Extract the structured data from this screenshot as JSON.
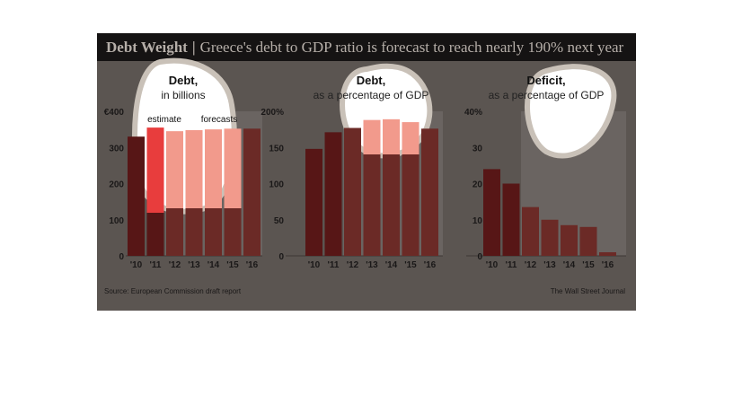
{
  "header": {
    "title": "Debt Weight",
    "separator": "|",
    "subtitle": "Greece's debt to GDP ratio is forecast to reach nearly 190% next year"
  },
  "footer": {
    "source": "Source: European Commission draft report",
    "credit": "The Wall Street Journal"
  },
  "colors": {
    "background": "#5b5551",
    "header_bg": "#151313",
    "actual_bar": "#571616",
    "forecast_bar": "#6b2a26",
    "forecast_shade": "#6a6461",
    "highlight_actual": "#e83d3d",
    "highlight_forecast": "#f29a8c"
  },
  "chart_data": [
    {
      "type": "bar",
      "title": "Debt,",
      "subtitle": "in billions",
      "categories": [
        "'10",
        "'11",
        "'12",
        "'13",
        "'14",
        "'15",
        "'16"
      ],
      "values": [
        330,
        355,
        345,
        348,
        350,
        352,
        352
      ],
      "ylim": [
        0,
        400
      ],
      "yticks": [
        "0",
        "100",
        "200",
        "300",
        "€400"
      ],
      "annotations": [
        "estimate",
        "forecasts"
      ],
      "forecast_from_index": 2
    },
    {
      "type": "bar",
      "title": "Debt,",
      "subtitle": "as a percentage of GDP",
      "categories": [
        "'10",
        "'11",
        "'12",
        "'13",
        "'14",
        "'15",
        "'16"
      ],
      "values": [
        148,
        171,
        177,
        188,
        189,
        185,
        176
      ],
      "ylim": [
        0,
        200
      ],
      "yticks": [
        "0",
        "50",
        "100",
        "150",
        "200%"
      ],
      "forecast_from_index": 2
    },
    {
      "type": "bar",
      "title": "Deficit,",
      "subtitle": "as a percentage of GDP",
      "categories": [
        "'10",
        "'11",
        "'12",
        "'13",
        "'14",
        "'15",
        "'16"
      ],
      "values": [
        24,
        20,
        13.5,
        10,
        8.5,
        8,
        1
      ],
      "ylim": [
        0,
        40
      ],
      "yticks": [
        "0",
        "10",
        "20",
        "30",
        "40%"
      ],
      "forecast_from_index": 2
    }
  ]
}
